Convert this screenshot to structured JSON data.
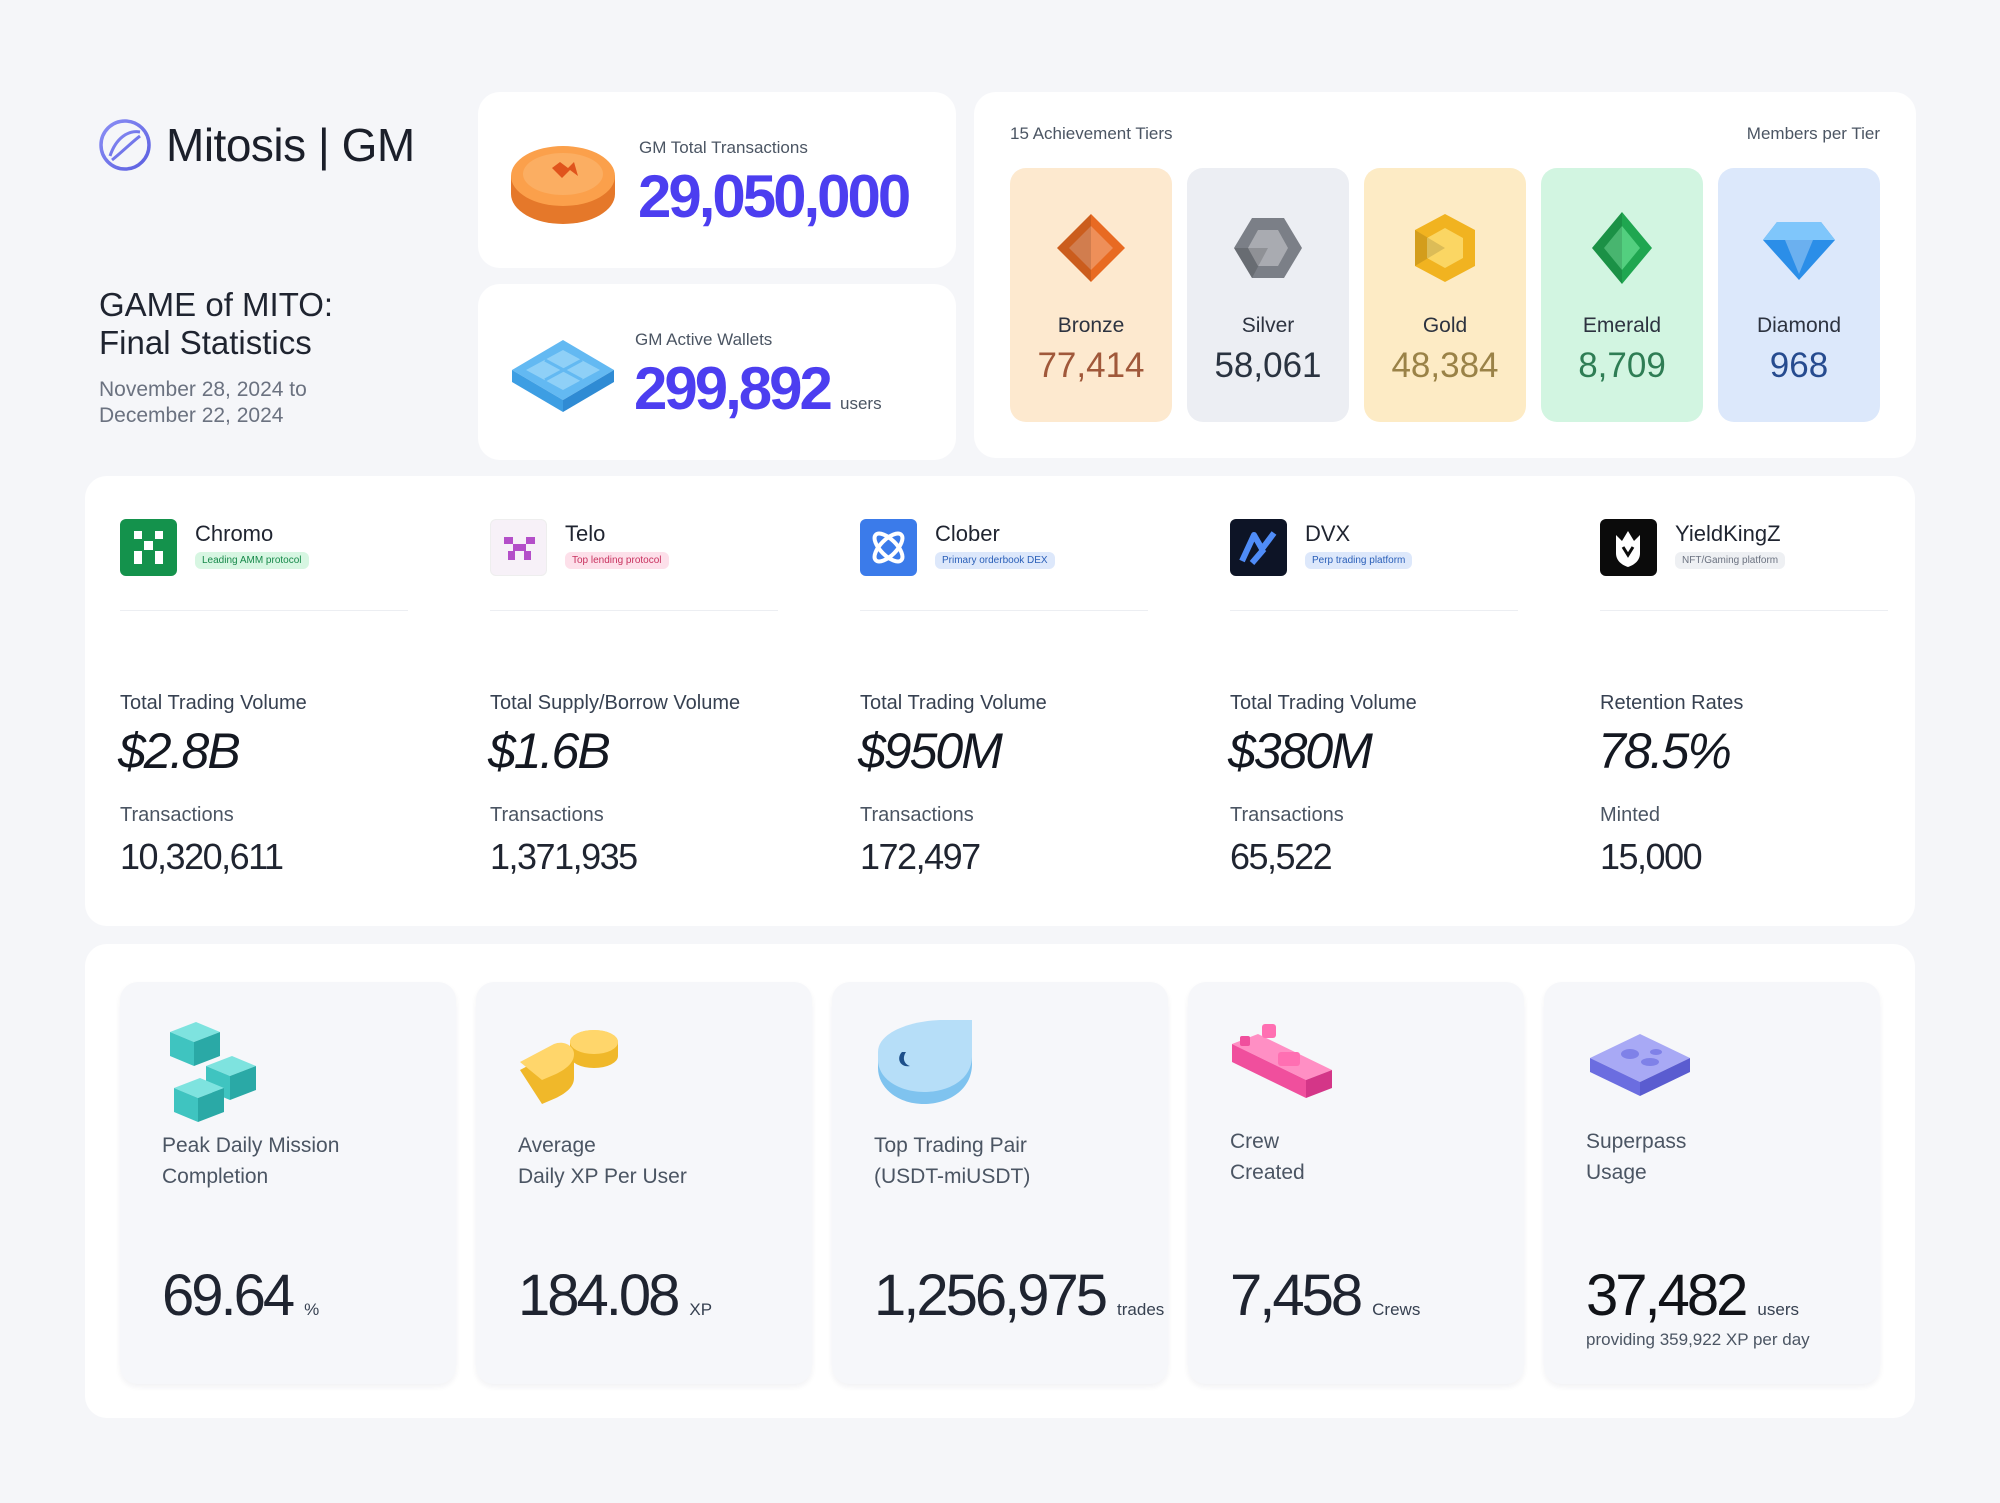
{
  "brand": {
    "name": "Mitosis | GM"
  },
  "title": {
    "line1": "GAME of MITO:",
    "line2": "Final Statistics"
  },
  "date_range": {
    "line1": "November 28, 2024 to",
    "line2": "December 22, 2024"
  },
  "kpis": {
    "transactions": {
      "label": "GM Total Transactions",
      "value": "29,050,000",
      "icon": "coin-icon"
    },
    "wallets": {
      "label": "GM Active Wallets",
      "value": "299,892",
      "unit": "users",
      "icon": "wallet-grid-icon"
    }
  },
  "tiers": {
    "title": "15 Achievement Tiers",
    "subtitle": "Members per Tier",
    "items": [
      {
        "name": "Bronze",
        "count": "77,414",
        "bg": "#fde9cf",
        "color": "#a0583a",
        "gem": "#e86a22"
      },
      {
        "name": "Silver",
        "count": "58,061",
        "bg": "#eceef3",
        "color": "#2a3340",
        "gem": "#7b7f87"
      },
      {
        "name": "Gold",
        "count": "48,384",
        "bg": "#fdebc5",
        "color": "#9a8247",
        "gem": "#f1b320"
      },
      {
        "name": "Emerald",
        "count": "8,709",
        "bg": "#d2f5e1",
        "color": "#2e7d54",
        "gem": "#1fa650"
      },
      {
        "name": "Diamond",
        "count": "968",
        "bg": "#dce8fb",
        "color": "#264b8f",
        "gem": "#2b8ee8"
      }
    ]
  },
  "partners": [
    {
      "name": "Chromo",
      "tag": "Leading AMM protocol",
      "tag_bg": "#d7f6e2",
      "tag_color": "#17894a",
      "metric_label": "Total Trading Volume",
      "metric_value": "$2.8B",
      "tx_label": "Transactions",
      "tx_value": "10,320,611"
    },
    {
      "name": "Telo",
      "tag": "Top lending protocol",
      "tag_bg": "#fde0ea",
      "tag_color": "#c8325f",
      "metric_label": "Total Supply/Borrow Volume",
      "metric_value": "$1.6B",
      "tx_label": "Transactions",
      "tx_value": "1,371,935"
    },
    {
      "name": "Clober",
      "tag": "Primary orderbook DEX",
      "tag_bg": "#dde8fb",
      "tag_color": "#2a5fb8",
      "metric_label": "Total Trading Volume",
      "metric_value": "$950M",
      "tx_label": "Transactions",
      "tx_value": "172,497"
    },
    {
      "name": "DVX",
      "tag": "Perp trading platform",
      "tag_bg": "#dde8fb",
      "tag_color": "#2a5fb8",
      "metric_label": "Total Trading Volume",
      "metric_value": "$380M",
      "tx_label": "Transactions",
      "tx_value": "65,522"
    },
    {
      "name": "YieldKingZ",
      "tag": "NFT/Gaming platform",
      "tag_bg": "#eef0f3",
      "tag_color": "#6b7280",
      "metric_label": "Retention Rates",
      "metric_value": "78.5%",
      "tx_label": "Minted",
      "tx_value": "15,000"
    }
  ],
  "stats": [
    {
      "label": "Peak Daily Mission\nCompletion",
      "value": "69.64",
      "unit": "%",
      "note": ""
    },
    {
      "label": "Average\nDaily XP Per User",
      "value": "184.08",
      "unit": "XP",
      "note": ""
    },
    {
      "label": "Top Trading Pair\n(USDT-miUSDT)",
      "value": "1,256,975",
      "unit": "trades",
      "note": ""
    },
    {
      "label": "Crew\nCreated",
      "value": "7,458",
      "unit": "Crews",
      "note": ""
    },
    {
      "label": "Superpass\nUsage",
      "value": "37,482",
      "unit": "users",
      "note": "providing 359,922 XP per day"
    }
  ]
}
